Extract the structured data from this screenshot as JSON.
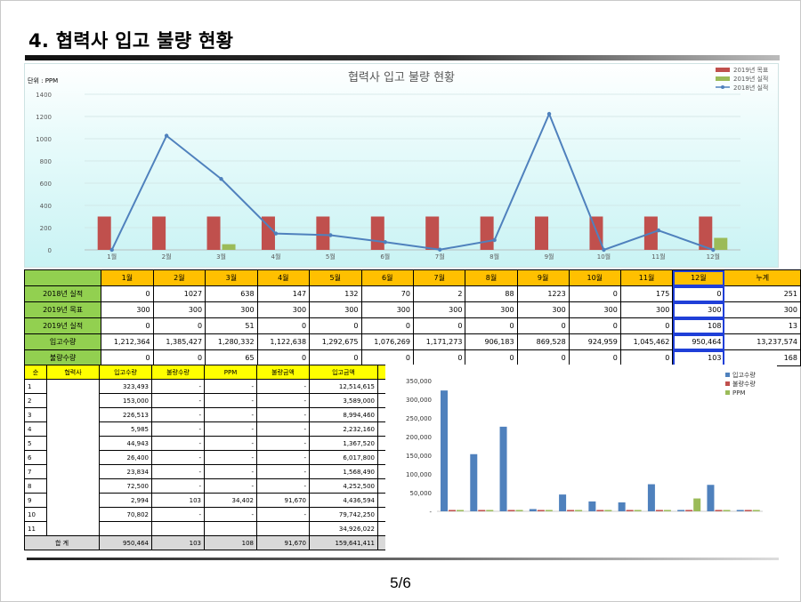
{
  "page": {
    "title": "4. 협력사 입고 불량 현황",
    "page_number": "5/6"
  },
  "colors": {
    "target": "#c0504d",
    "actual2019": "#9bbb59",
    "line2018": "#4f81bd",
    "bar_qty": "#4f81bd",
    "bar_defect": "#c0504d",
    "bar_ppm": "#9bbb59",
    "header_orange": "#ffc000",
    "header_green": "#92d050",
    "header_yellow": "#ffff00"
  },
  "chart_data": [
    {
      "type": "bar",
      "title": "협력사 입고 불량 현황",
      "unit_label": "단위 : PPM",
      "categories": [
        "1월",
        "2월",
        "3월",
        "4월",
        "5월",
        "6월",
        "7월",
        "8월",
        "9월",
        "10월",
        "11월",
        "12월"
      ],
      "ylim": [
        0,
        1400
      ],
      "yticks": [
        0,
        200,
        400,
        600,
        800,
        1000,
        1200,
        1400
      ],
      "legend_position": "top-right",
      "series": [
        {
          "name": "2019년 목표",
          "kind": "bar",
          "values": [
            300,
            300,
            300,
            300,
            300,
            300,
            300,
            300,
            300,
            300,
            300,
            300
          ]
        },
        {
          "name": "2019년 실적",
          "kind": "bar",
          "values": [
            0,
            0,
            51,
            0,
            0,
            0,
            0,
            0,
            0,
            0,
            0,
            108
          ]
        },
        {
          "name": "2018년 실적",
          "kind": "line",
          "values": [
            0,
            1027,
            638,
            147,
            132,
            70,
            2,
            88,
            1223,
            0,
            175,
            0
          ]
        }
      ]
    },
    {
      "type": "bar",
      "categories": [
        "1",
        "2",
        "3",
        "4",
        "5",
        "6",
        "7",
        "8",
        "9",
        "10",
        "11"
      ],
      "ylim": [
        0,
        350000
      ],
      "ytick_labels": [
        "-",
        "50,000",
        "100,000",
        "150,000",
        "200,000",
        "250,000",
        "300,000",
        "350,000"
      ],
      "legend_position": "top-right",
      "series": [
        {
          "name": "입고수량",
          "values": [
            323493,
            153000,
            226513,
            5985,
            44943,
            26400,
            23834,
            72500,
            2994,
            70802,
            0
          ]
        },
        {
          "name": "불량수량",
          "values": [
            0,
            0,
            0,
            0,
            0,
            0,
            0,
            0,
            103,
            0,
            0
          ]
        },
        {
          "name": "PPM",
          "values": [
            0,
            0,
            0,
            0,
            0,
            0,
            0,
            0,
            34402,
            0,
            0
          ]
        }
      ]
    }
  ],
  "summary_table": {
    "headers": [
      "1월",
      "2월",
      "3월",
      "4월",
      "5월",
      "6월",
      "7월",
      "8월",
      "9월",
      "10월",
      "11월",
      "12월",
      "누계"
    ],
    "rows": [
      {
        "label": "2018년 실적",
        "cells": [
          "0",
          "1027",
          "638",
          "147",
          "132",
          "70",
          "2",
          "88",
          "1223",
          "0",
          "175",
          "0",
          "251"
        ]
      },
      {
        "label": "2019년 목표",
        "cells": [
          "300",
          "300",
          "300",
          "300",
          "300",
          "300",
          "300",
          "300",
          "300",
          "300",
          "300",
          "300",
          "300"
        ]
      },
      {
        "label": "2019년 실적",
        "cells": [
          "0",
          "0",
          "51",
          "0",
          "0",
          "0",
          "0",
          "0",
          "0",
          "0",
          "0",
          "108",
          "13"
        ]
      },
      {
        "label": "입고수량",
        "cells": [
          "1,212,364",
          "1,385,427",
          "1,280,332",
          "1,122,638",
          "1,292,675",
          "1,076,269",
          "1,171,273",
          "906,183",
          "869,528",
          "924,959",
          "1,045,462",
          "950,464",
          "13,237,574"
        ]
      },
      {
        "label": "불량수량",
        "cells": [
          "0",
          "0",
          "65",
          "0",
          "0",
          "0",
          "0",
          "0",
          "0",
          "0",
          "0",
          "103",
          "168"
        ]
      }
    ]
  },
  "detail_table": {
    "headers": [
      "순",
      "협력사",
      "입고수량",
      "불량수량",
      "PPM",
      "불량금액",
      "입고금액",
      "비고"
    ],
    "rows": [
      [
        "1",
        "",
        "323,493",
        "-",
        "-",
        "-",
        "12,514,615",
        ""
      ],
      [
        "2",
        "",
        "153,000",
        "-",
        "-",
        "-",
        "3,589,000",
        ""
      ],
      [
        "3",
        "",
        "226,513",
        "-",
        "-",
        "-",
        "8,994,460",
        ""
      ],
      [
        "4",
        "",
        "5,985",
        "-",
        "-",
        "-",
        "2,232,160",
        ""
      ],
      [
        "5",
        "",
        "44,943",
        "-",
        "-",
        "-",
        "1,367,520",
        ""
      ],
      [
        "6",
        "",
        "26,400",
        "-",
        "-",
        "-",
        "6,017,800",
        ""
      ],
      [
        "7",
        "",
        "23,834",
        "-",
        "-",
        "-",
        "1,568,490",
        ""
      ],
      [
        "8",
        "",
        "72,500",
        "-",
        "-",
        "-",
        "4,252,500",
        ""
      ],
      [
        "9",
        "",
        "2,994",
        "103",
        "34,402",
        "91,670",
        "4,436,594",
        ""
      ],
      [
        "10",
        "",
        "70,802",
        "-",
        "-",
        "-",
        "79,742,250",
        ""
      ],
      [
        "11",
        "",
        "",
        "",
        "",
        "",
        "34,926,022",
        ""
      ]
    ],
    "total": {
      "label": "합 계",
      "qty": "950,464",
      "defect": "103",
      "ppm": "108",
      "defect_amount": "91,670",
      "amount": "159,641,411",
      "note": ""
    }
  }
}
